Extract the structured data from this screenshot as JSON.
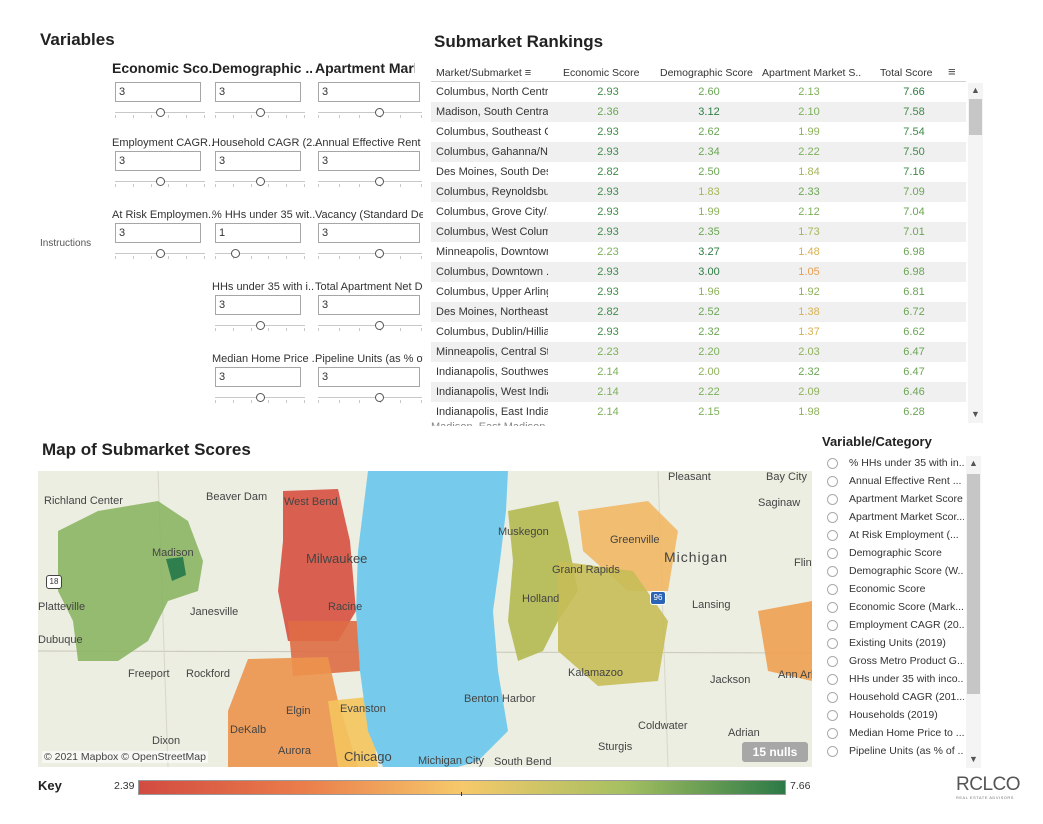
{
  "variables": {
    "title": "Variables",
    "instructions": "Instructions",
    "columns": [
      {
        "label": "Economic Sco..",
        "value": "3",
        "knob": 0.5
      },
      {
        "label": "Demographic ..",
        "value": "3",
        "knob": 0.5
      },
      {
        "label": "Apartment Marke..",
        "value": "3",
        "knob": 0.6
      }
    ],
    "controls": [
      {
        "label": "Employment CAGR..",
        "value": "3",
        "knob": 0.5
      },
      {
        "label": "Household CAGR (2..",
        "value": "3",
        "knob": 0.5
      },
      {
        "label": "Annual Effective Rent ..",
        "value": "3",
        "knob": 0.6
      },
      {
        "label": "At Risk Employmen..",
        "value": "3",
        "knob": 0.5
      },
      {
        "label": "% HHs under 35 wit..",
        "value": "1",
        "knob": 0.2
      },
      {
        "label": "Vacancy (Standard De..",
        "value": "3",
        "knob": 0.6
      },
      {
        "label": "HHs under 35 with i..",
        "value": "3",
        "knob": 0.5
      },
      {
        "label": "Total Apartment Net D..",
        "value": "3",
        "knob": 0.6
      },
      {
        "label": "Median Home Price ..",
        "value": "3",
        "knob": 0.5
      },
      {
        "label": "Pipeline Units (as % of ..",
        "value": "3",
        "knob": 0.6
      }
    ]
  },
  "rankings": {
    "title": "Submarket Rankings",
    "headers": [
      "Market/Submarket",
      "Economic Score",
      "Demographic Score",
      "Apartment Market S..",
      "Total Score"
    ],
    "rows": [
      {
        "name": "Columbus, North Centr..",
        "eco": "2.93",
        "demo": "2.60",
        "apt": "2.13",
        "total": "7.66"
      },
      {
        "name": "Madison, South Central..",
        "eco": "2.36",
        "demo": "3.12",
        "apt": "2.10",
        "total": "7.58"
      },
      {
        "name": "Columbus, Southeast C..",
        "eco": "2.93",
        "demo": "2.62",
        "apt": "1.99",
        "total": "7.54"
      },
      {
        "name": "Columbus, Gahanna/N..",
        "eco": "2.93",
        "demo": "2.34",
        "apt": "2.22",
        "total": "7.50"
      },
      {
        "name": "Des Moines, South Des..",
        "eco": "2.82",
        "demo": "2.50",
        "apt": "1.84",
        "total": "7.16"
      },
      {
        "name": "Columbus, Reynoldsbur..",
        "eco": "2.93",
        "demo": "1.83",
        "apt": "2.33",
        "total": "7.09"
      },
      {
        "name": "Columbus, Grove City/..",
        "eco": "2.93",
        "demo": "1.99",
        "apt": "2.12",
        "total": "7.04"
      },
      {
        "name": "Columbus, West Colum..",
        "eco": "2.93",
        "demo": "2.35",
        "apt": "1.73",
        "total": "7.01"
      },
      {
        "name": "Minneapolis, Downtown..",
        "eco": "2.23",
        "demo": "3.27",
        "apt": "1.48",
        "total": "6.98"
      },
      {
        "name": "Columbus, Downtown ..",
        "eco": "2.93",
        "demo": "3.00",
        "apt": "1.05",
        "total": "6.98"
      },
      {
        "name": "Columbus, Upper Arling..",
        "eco": "2.93",
        "demo": "1.96",
        "apt": "1.92",
        "total": "6.81"
      },
      {
        "name": "Des Moines, Northeast ..",
        "eco": "2.82",
        "demo": "2.52",
        "apt": "1.38",
        "total": "6.72"
      },
      {
        "name": "Columbus, Dublin/Hilliard",
        "eco": "2.93",
        "demo": "2.32",
        "apt": "1.37",
        "total": "6.62"
      },
      {
        "name": "Minneapolis, Central St..",
        "eco": "2.23",
        "demo": "2.20",
        "apt": "2.03",
        "total": "6.47"
      },
      {
        "name": "Indianapolis, Southwest..",
        "eco": "2.14",
        "demo": "2.00",
        "apt": "2.32",
        "total": "6.47"
      },
      {
        "name": "Indianapolis, West India..",
        "eco": "2.14",
        "demo": "2.22",
        "apt": "2.09",
        "total": "6.46"
      },
      {
        "name": "Indianapolis, East India..",
        "eco": "2.14",
        "demo": "2.15",
        "apt": "1.98",
        "total": "6.28"
      }
    ]
  },
  "map": {
    "title": "Map of Submarket Scores",
    "attribution": "© 2021 Mapbox © OpenStreetMap",
    "nulls_badge": "15 nulls",
    "place_labels": [
      "Richland Center",
      "Beaver Dam",
      "West Bend",
      "Madison",
      "Milwaukee",
      "Janesville",
      "Racine",
      "Freeport",
      "Rockford",
      "DeKalb",
      "Elgin",
      "Evanston",
      "Aurora",
      "Chicago",
      "Dixon",
      "Pleasant",
      "Bay City",
      "Saginaw",
      "Muskegon",
      "Greenville",
      "Michigan",
      "Grand Rapids",
      "Holland",
      "Lansing",
      "Flint",
      "Kalamazoo",
      "Benton Harbor",
      "Jackson",
      "Ann Arbor",
      "Coldwater",
      "Adrian",
      "Sturgis",
      "Michigan City",
      "South Bend",
      "Platteville",
      "Dubuque"
    ]
  },
  "legend": {
    "title": "Variable/Category",
    "items": [
      "% HHs under 35 with in...",
      "Annual Effective Rent ...",
      "Apartment Market Score",
      "Apartment Market Scor...",
      "At Risk Employment (...",
      "Demographic Score",
      "Demographic Score (W...",
      "Economic Score",
      "Economic Score (Mark...",
      "Employment CAGR (20...",
      "Existing Units (2019)",
      "Gross Metro Product G...",
      "HHs under 35 with inco...",
      "Household CAGR (201...",
      "Households (2019)",
      "Median Home Price to ...",
      "Pipeline Units (as % of ..."
    ]
  },
  "key": {
    "label": "Key",
    "min": "2.39",
    "max": "7.66"
  },
  "brand": {
    "logo_text": "RCLCO",
    "tagline": "REAL ESTATE ADVISORS"
  },
  "colors": {
    "scale_low": "#d24b41",
    "scale_mid": "#f6c96b",
    "scale_high": "#2c7a47",
    "lake": "#76cbec"
  }
}
